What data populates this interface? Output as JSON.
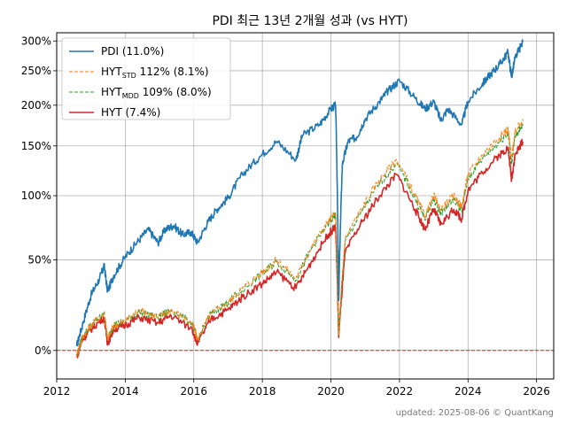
{
  "chart_data": {
    "type": "line",
    "title": "PDI 최근 13년 2개월 성과 (vs HYT)",
    "footer": "updated: 2025-08-06 © QuantKang",
    "xlabel": "",
    "ylabel": "",
    "x_ticks": [
      "2012",
      "2014",
      "2016",
      "2018",
      "2020",
      "2022",
      "2024",
      "2026"
    ],
    "y_ticks": [
      "0%",
      "50%",
      "100%",
      "150%",
      "200%",
      "250%",
      "300%"
    ],
    "xlim": [
      "2012-01-01",
      "2026-07-01"
    ],
    "ylim": [
      -0.12,
      3.15
    ],
    "y_scale": "log1p",
    "grid": true,
    "legend_position": "top-left",
    "reference_line": {
      "y": 0,
      "color": "#d62728",
      "style": "dashed"
    },
    "colors": {
      "pdi": "#1f77b4",
      "hyt_std": "#ff7f0e",
      "hyt_mdd": "#2ca02c",
      "hyt": "#d62728"
    },
    "series": [
      {
        "name": "PDI (11.0%)",
        "legend_main": "PDI (11.0%)",
        "legend_sub": "",
        "legend_tail": "",
        "color": "#1f77b4",
        "style": "solid",
        "dates": [
          "2012-08-01",
          "2012-10-01",
          "2013-01-01",
          "2013-04-01",
          "2013-05-20",
          "2013-06-25",
          "2013-09-01",
          "2014-01-01",
          "2014-05-01",
          "2014-09-01",
          "2014-12-15",
          "2015-03-01",
          "2015-06-01",
          "2015-09-01",
          "2015-12-01",
          "2016-02-10",
          "2016-06-01",
          "2016-09-01",
          "2017-01-01",
          "2017-06-01",
          "2017-12-01",
          "2018-06-01",
          "2018-12-24",
          "2019-03-01",
          "2019-09-01",
          "2020-01-01",
          "2020-02-20",
          "2020-03-23",
          "2020-05-01",
          "2020-07-01",
          "2020-10-01",
          "2021-01-01",
          "2021-06-01",
          "2021-09-01",
          "2022-01-01",
          "2022-06-15",
          "2022-09-30",
          "2023-01-01",
          "2023-03-15",
          "2023-06-01",
          "2023-10-25",
          "2024-01-01",
          "2024-06-01",
          "2024-09-01",
          "2024-12-01",
          "2025-03-01",
          "2025-04-08",
          "2025-05-15",
          "2025-08-06"
        ],
        "values": [
          0.02,
          0.12,
          0.28,
          0.38,
          0.46,
          0.3,
          0.4,
          0.52,
          0.62,
          0.72,
          0.62,
          0.72,
          0.75,
          0.68,
          0.7,
          0.62,
          0.78,
          0.88,
          0.98,
          1.2,
          1.38,
          1.55,
          1.35,
          1.62,
          1.75,
          1.95,
          2.0,
          0.25,
          1.3,
          1.55,
          1.6,
          1.82,
          2.05,
          2.2,
          2.35,
          2.1,
          1.95,
          2.05,
          1.8,
          1.95,
          1.75,
          2.05,
          2.3,
          2.45,
          2.6,
          2.8,
          2.4,
          2.7,
          2.98
        ]
      },
      {
        "name": "HYT STD 112% (8.1%)",
        "legend_main": "HYT",
        "legend_sub": "STD",
        "legend_tail": " 112% (8.1%)",
        "color": "#ff7f0e",
        "style": "dashed",
        "dates": [
          "2012-08-01",
          "2012-10-01",
          "2013-01-01",
          "2013-05-20",
          "2013-06-25",
          "2013-09-01",
          "2014-01-01",
          "2014-06-01",
          "2014-12-15",
          "2015-05-01",
          "2015-12-15",
          "2016-02-10",
          "2016-07-01",
          "2017-01-01",
          "2017-06-01",
          "2018-01-01",
          "2018-06-01",
          "2018-12-24",
          "2019-06-01",
          "2019-12-01",
          "2020-02-20",
          "2020-03-23",
          "2020-06-01",
          "2020-12-01",
          "2021-06-01",
          "2021-12-01",
          "2022-06-15",
          "2022-09-30",
          "2023-01-01",
          "2023-03-15",
          "2023-08-01",
          "2023-10-25",
          "2024-01-01",
          "2024-06-01",
          "2024-12-01",
          "2025-03-01",
          "2025-04-08",
          "2025-05-15",
          "2025-08-06"
        ],
        "values": [
          -0.02,
          0.06,
          0.12,
          0.18,
          0.05,
          0.12,
          0.14,
          0.2,
          0.16,
          0.2,
          0.13,
          0.05,
          0.18,
          0.24,
          0.32,
          0.42,
          0.5,
          0.38,
          0.58,
          0.78,
          0.85,
          0.07,
          0.65,
          0.9,
          1.15,
          1.35,
          1.0,
          0.82,
          1.0,
          0.88,
          1.0,
          0.9,
          1.2,
          1.4,
          1.6,
          1.7,
          1.35,
          1.65,
          1.82
        ]
      },
      {
        "name": "HYT MDD 109% (8.0%)",
        "legend_main": "HYT",
        "legend_sub": "MDD",
        "legend_tail": " 109% (8.0%)",
        "color": "#2ca02c",
        "style": "dashed",
        "dates": [
          "2012-08-01",
          "2012-10-01",
          "2013-01-01",
          "2013-05-20",
          "2013-06-25",
          "2013-09-01",
          "2014-01-01",
          "2014-06-01",
          "2014-12-15",
          "2015-05-01",
          "2015-12-15",
          "2016-02-10",
          "2016-07-01",
          "2017-01-01",
          "2017-06-01",
          "2018-01-01",
          "2018-06-01",
          "2018-12-24",
          "2019-06-01",
          "2019-12-01",
          "2020-02-20",
          "2020-03-23",
          "2020-06-01",
          "2020-12-01",
          "2021-06-01",
          "2021-12-01",
          "2022-06-15",
          "2022-09-30",
          "2023-01-01",
          "2023-03-15",
          "2023-08-01",
          "2023-10-25",
          "2024-01-01",
          "2024-06-01",
          "2024-12-01",
          "2025-03-01",
          "2025-04-08",
          "2025-05-15",
          "2025-08-06"
        ],
        "values": [
          -0.02,
          0.06,
          0.12,
          0.18,
          0.05,
          0.12,
          0.14,
          0.19,
          0.16,
          0.2,
          0.13,
          0.05,
          0.18,
          0.24,
          0.31,
          0.41,
          0.49,
          0.37,
          0.57,
          0.76,
          0.83,
          0.07,
          0.63,
          0.87,
          1.11,
          1.31,
          0.97,
          0.8,
          0.97,
          0.85,
          0.97,
          0.87,
          1.16,
          1.36,
          1.55,
          1.65,
          1.31,
          1.6,
          1.76
        ]
      },
      {
        "name": "HYT (7.4%)",
        "legend_main": "HYT (7.4%)",
        "legend_sub": "",
        "legend_tail": "",
        "color": "#d62728",
        "style": "solid",
        "dates": [
          "2012-08-01",
          "2012-10-01",
          "2013-01-01",
          "2013-05-20",
          "2013-06-25",
          "2013-09-01",
          "2014-01-01",
          "2014-06-01",
          "2014-12-15",
          "2015-05-01",
          "2015-12-15",
          "2016-02-10",
          "2016-07-01",
          "2017-01-01",
          "2017-06-01",
          "2018-01-01",
          "2018-06-01",
          "2018-12-24",
          "2019-06-01",
          "2019-12-01",
          "2020-02-20",
          "2020-03-23",
          "2020-06-01",
          "2020-12-01",
          "2021-06-01",
          "2021-12-01",
          "2022-06-15",
          "2022-09-30",
          "2023-01-01",
          "2023-03-15",
          "2023-08-01",
          "2023-10-25",
          "2024-01-01",
          "2024-06-01",
          "2024-12-01",
          "2025-03-01",
          "2025-04-08",
          "2025-05-15",
          "2025-08-06"
        ],
        "values": [
          -0.03,
          0.05,
          0.1,
          0.16,
          0.03,
          0.1,
          0.12,
          0.16,
          0.13,
          0.17,
          0.1,
          0.03,
          0.15,
          0.2,
          0.27,
          0.35,
          0.42,
          0.32,
          0.48,
          0.68,
          0.74,
          0.06,
          0.55,
          0.78,
          1.0,
          1.2,
          0.88,
          0.72,
          0.88,
          0.76,
          0.88,
          0.8,
          1.05,
          1.22,
          1.4,
          1.48,
          1.15,
          1.4,
          1.55
        ]
      }
    ]
  }
}
